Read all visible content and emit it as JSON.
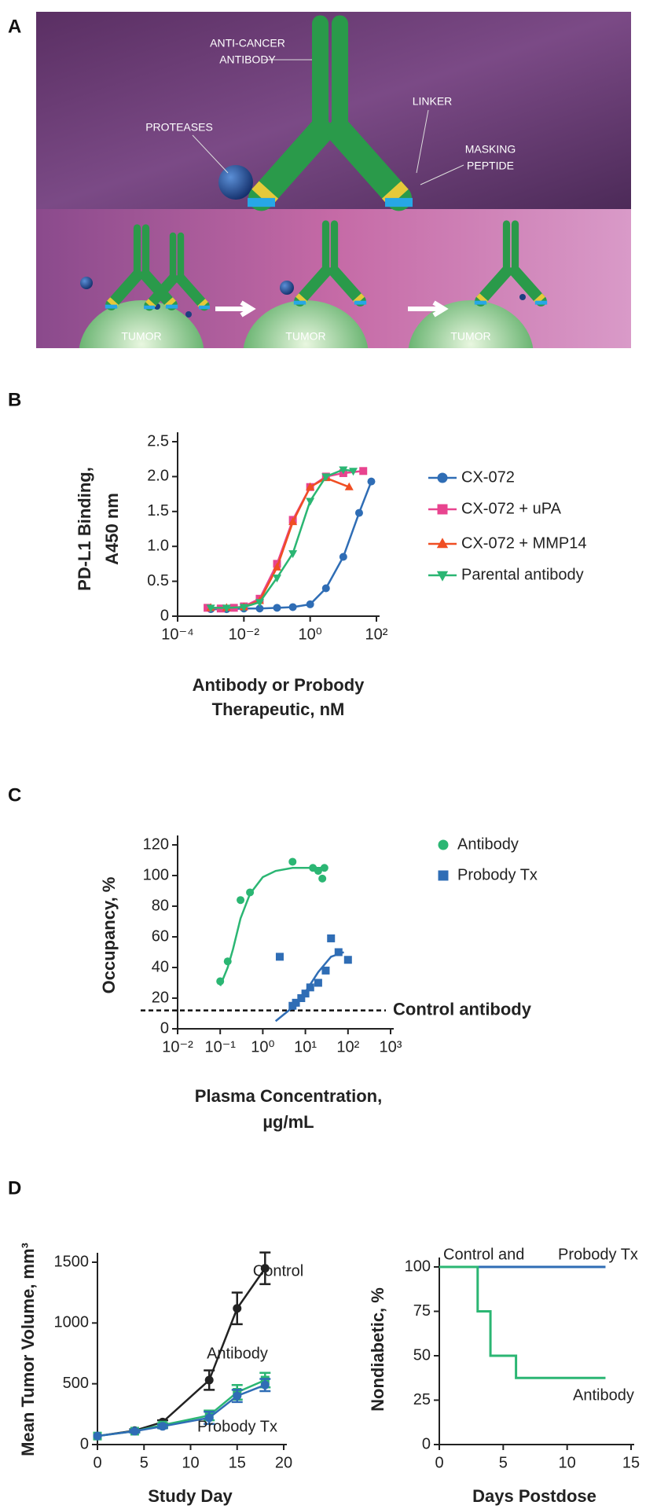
{
  "illustration": {
    "panel": "A",
    "labels": [
      "ANTI-CANCER",
      "ANTIBODY",
      "PROTEASES",
      "LINKER",
      "MASKING",
      "PEPTIDE",
      "TUMOR",
      "TUMOR",
      "TUMOR"
    ]
  },
  "chart_data": [
    {
      "type": "line",
      "panel": "B",
      "ylabel": [
        "PD-L1 Binding,",
        "A450 nm"
      ],
      "xlabel": [
        "Antibody or Probody",
        "Therapeutic, nM"
      ],
      "xscale": "log",
      "xlim": [
        0.0001,
        100
      ],
      "xticks": [
        {
          "value": 0.0001,
          "label": "10⁻⁴"
        },
        {
          "value": 0.01,
          "label": "10⁻²"
        },
        {
          "value": 1,
          "label": "10⁰"
        },
        {
          "value": 100,
          "label": "10²"
        }
      ],
      "ylim": [
        0,
        2.5
      ],
      "yticks": [
        0,
        0.5,
        {
          "value": 1,
          "label": "1.0"
        },
        1.5,
        {
          "value": 2,
          "label": "2.0"
        },
        2.5
      ],
      "legend": "right",
      "series": [
        {
          "name": "CX-072",
          "color": "#2f6db5",
          "marker": "circle",
          "x": [
            0.001,
            0.003,
            0.01,
            0.03,
            0.1,
            0.3,
            1,
            3,
            10,
            30,
            70
          ],
          "values": [
            0.1,
            0.1,
            0.11,
            0.11,
            0.12,
            0.13,
            0.17,
            0.4,
            0.85,
            1.48,
            1.93
          ]
        },
        {
          "name": "CX-072 + uPA",
          "color": "#e8448f",
          "marker": "square",
          "x": [
            0.0008,
            0.002,
            0.005,
            0.01,
            0.03,
            0.1,
            0.3,
            1,
            3,
            10,
            40
          ],
          "values": [
            0.12,
            0.11,
            0.12,
            0.14,
            0.25,
            0.75,
            1.38,
            1.85,
            2.0,
            2.05,
            2.08
          ]
        },
        {
          "name": "CX-072 + MMP14",
          "color": "#f04e23",
          "marker": "triangle-up",
          "x": [
            0.001,
            0.003,
            0.01,
            0.03,
            0.1,
            0.3,
            1,
            3,
            15
          ],
          "values": [
            0.12,
            0.12,
            0.13,
            0.22,
            0.7,
            1.35,
            1.85,
            1.98,
            1.85
          ]
        },
        {
          "name": "Parental antibody",
          "color": "#2bb673",
          "marker": "triangle-down",
          "x": [
            0.001,
            0.003,
            0.01,
            0.03,
            0.1,
            0.3,
            1,
            3,
            10,
            20
          ],
          "values": [
            0.12,
            0.12,
            0.13,
            0.2,
            0.55,
            0.9,
            1.65,
            2.0,
            2.1,
            2.08
          ]
        }
      ]
    },
    {
      "type": "scatter",
      "panel": "C",
      "ylabel": [
        "Occupancy, %"
      ],
      "xlabel": [
        "Plasma Concentration,",
        "µg/mL"
      ],
      "xscale": "log",
      "xlim": [
        0.01,
        1000
      ],
      "xticks": [
        {
          "value": 0.01,
          "label": "10⁻²"
        },
        {
          "value": 0.1,
          "label": "10⁻¹"
        },
        {
          "value": 1,
          "label": "10⁰"
        },
        {
          "value": 10,
          "label": "10¹"
        },
        {
          "value": 100,
          "label": "10²"
        },
        {
          "value": 1000,
          "label": "10³"
        }
      ],
      "ylim": [
        0,
        120
      ],
      "yticks": [
        0,
        20,
        40,
        60,
        80,
        100,
        120
      ],
      "legend": "right",
      "reference_line": {
        "value": 12,
        "label": "Control antibody"
      },
      "series": [
        {
          "name": "Antibody",
          "color": "#2bb673",
          "marker": "circle",
          "x": [
            0.1,
            0.15,
            0.3,
            0.5,
            5,
            15,
            20,
            25,
            28
          ],
          "values": [
            31,
            44,
            84,
            89,
            109,
            105,
            103,
            98,
            105
          ],
          "curve": {
            "x": [
              0.1,
              0.15,
              0.2,
              0.3,
              0.5,
              1,
              2,
              5,
              10,
              30
            ],
            "values": [
              28,
              40,
              52,
              72,
              88,
              99,
              103,
              105,
              105,
              105
            ]
          }
        },
        {
          "name": "Probody Tx",
          "color": "#2f6db5",
          "marker": "square",
          "x": [
            2.5,
            5,
            6,
            8,
            10,
            13,
            20,
            30,
            40,
            60,
            100
          ],
          "values": [
            47,
            15,
            17,
            20,
            23,
            27,
            30,
            38,
            59,
            50,
            45
          ],
          "curve": {
            "x": [
              2,
              5,
              10,
              20,
              40,
              80
            ],
            "values": [
              5,
              14,
              24,
              37,
              47,
              50
            ]
          }
        }
      ]
    },
    {
      "type": "line",
      "panel": "D",
      "ylabel": [
        "Mean Tumor Volume, mm³"
      ],
      "xlabel": [
        "Study Day"
      ],
      "xlim": [
        0,
        20
      ],
      "xticks": [
        0,
        5,
        10,
        15,
        20
      ],
      "ylim": [
        0,
        1500
      ],
      "yticks": [
        0,
        500,
        1000,
        1500
      ],
      "legend": "inline",
      "series": [
        {
          "name": "Control",
          "color": "#222222",
          "marker": "circle",
          "x": [
            0,
            4,
            7,
            12,
            15,
            18
          ],
          "values": [
            70,
            115,
            185,
            530,
            1120,
            1450
          ],
          "errors": [
            0,
            10,
            15,
            80,
            130,
            130
          ]
        },
        {
          "name": "Antibody",
          "color": "#2bb673",
          "marker": "square",
          "x": [
            0,
            4,
            7,
            12,
            15,
            18
          ],
          "values": [
            70,
            110,
            160,
            240,
            430,
            530
          ],
          "errors": [
            0,
            10,
            15,
            40,
            60,
            60
          ]
        },
        {
          "name": "Probody Tx",
          "color": "#2f6db5",
          "marker": "circle",
          "x": [
            0,
            4,
            7,
            12,
            15,
            18
          ],
          "values": [
            70,
            110,
            150,
            220,
            400,
            490
          ],
          "errors": [
            0,
            10,
            15,
            50,
            50,
            50
          ]
        }
      ]
    },
    {
      "type": "step",
      "ylabel": [
        "Nondiabetic, %"
      ],
      "xlabel": [
        "Days Postdose"
      ],
      "xlim": [
        0,
        15
      ],
      "xticks": [
        0,
        5,
        10,
        15
      ],
      "ylim": [
        0,
        100
      ],
      "yticks": [
        0,
        25,
        50,
        75,
        100
      ],
      "legend": "inline",
      "annotation": "Control and",
      "series": [
        {
          "name": "Probody Tx",
          "color": "#2f6db5",
          "x": [
            0,
            13
          ],
          "values": [
            100,
            100
          ]
        },
        {
          "name": "Antibody",
          "color": "#2bb673",
          "x": [
            0,
            3,
            4,
            6,
            13
          ],
          "values": [
            100,
            75,
            50,
            37.5,
            37.5
          ]
        }
      ]
    }
  ]
}
